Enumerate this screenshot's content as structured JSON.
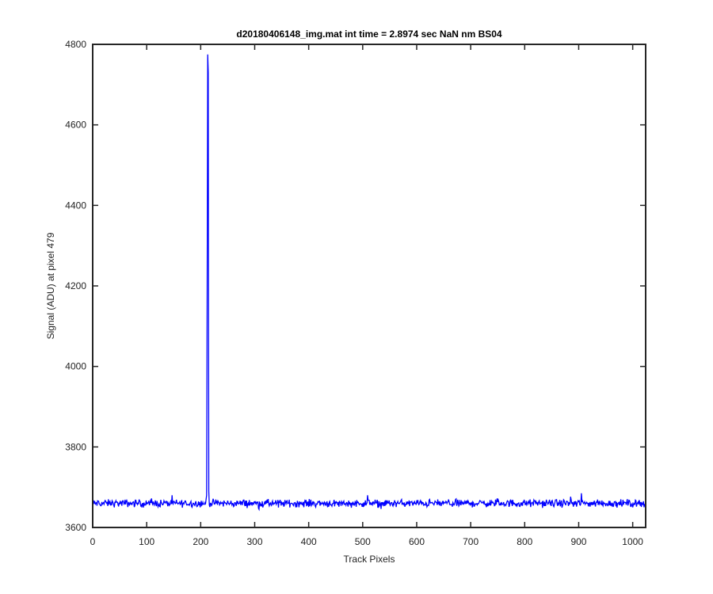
{
  "chart_data": {
    "type": "line",
    "title": "d20180406148_img.mat int time = 2.8974 sec  NaN nm BS04",
    "xlabel": "Track Pixels",
    "ylabel": "Signal (ADU) at pixel 479",
    "xlim": [
      0,
      1024
    ],
    "ylim": [
      3600,
      4800
    ],
    "xticks": [
      0,
      100,
      200,
      300,
      400,
      500,
      600,
      700,
      800,
      900,
      1000
    ],
    "yticks": [
      3600,
      3800,
      4000,
      4200,
      4400,
      4600,
      4800
    ],
    "grid": false,
    "line_color": "#0000ff",
    "series": [
      {
        "baseline_mean": 3660,
        "noise_range": [
          3645,
          3680
        ],
        "x_count": 1024,
        "spikes": [
          {
            "x": 211,
            "y": 3680
          },
          {
            "x": 212,
            "y": 4195
          },
          {
            "x": 213,
            "y": 4775
          },
          {
            "x": 214,
            "y": 4730
          },
          {
            "x": 215,
            "y": 3690
          },
          {
            "x": 905,
            "y": 3685
          }
        ]
      }
    ]
  }
}
